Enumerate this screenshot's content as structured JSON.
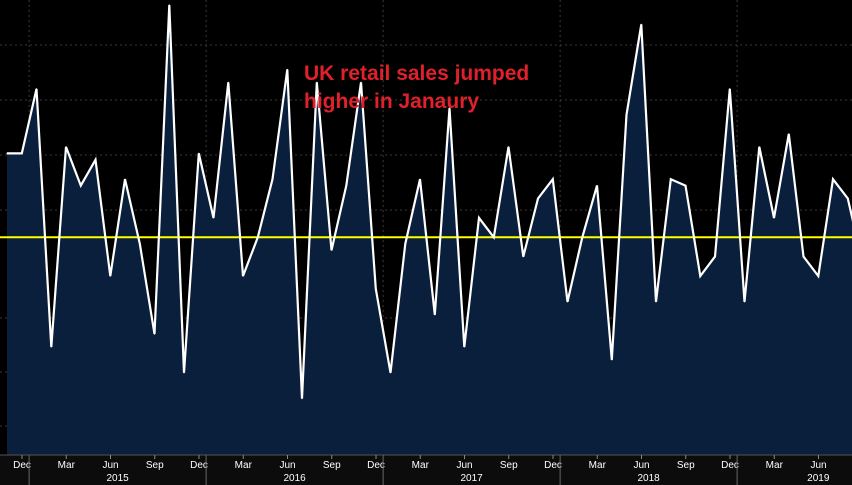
{
  "chart_data": {
    "type": "area",
    "title": "",
    "xlabel": "",
    "ylabel": "",
    "annotation_lines": [
      "UK retail sales jumped",
      "higher in Janaury"
    ],
    "months_x_labels": [
      "Dec",
      "Mar",
      "Jun",
      "Sep",
      "Dec",
      "Mar",
      "Jun",
      "Sep",
      "Dec",
      "Mar",
      "Jun",
      "Sep",
      "Dec",
      "Mar",
      "Jun",
      "Sep",
      "Dec",
      "Mar",
      "Jun"
    ],
    "year_labels": [
      "2015",
      "2016",
      "2017",
      "2018",
      "2019"
    ],
    "grid": true,
    "reference_line": {
      "value": 0,
      "color": "#ffff00"
    },
    "ylim": [
      -2.6,
      3.6
    ],
    "series": [
      {
        "values": [
          1.3,
          1.3,
          2.3,
          -1.7,
          1.4,
          0.8,
          1.2,
          -0.6,
          0.9,
          -0.1,
          -1.5,
          3.6,
          -2.1,
          1.3,
          0.3,
          2.4,
          -0.6,
          0.0,
          0.9,
          2.6,
          -2.5,
          2.4,
          -0.2,
          0.8,
          2.4,
          -0.8,
          -2.1,
          -0.1,
          0.9,
          -1.2,
          2.0,
          -1.7,
          0.3,
          0.0,
          1.4,
          -0.3,
          0.6,
          0.9,
          -1.0,
          0.0,
          0.8,
          -1.9,
          1.9,
          3.3,
          -1.0,
          0.9,
          0.8,
          -0.6,
          -0.3,
          2.3,
          -1.0,
          1.4,
          0.3,
          1.6,
          -0.3,
          -0.6,
          0.9,
          0.6,
          -0.4
        ],
        "color": "#ffffff",
        "fill": "#0a1f3c"
      }
    ],
    "colors": {
      "background": "#000000",
      "grid": "#3a3a3a",
      "axis_text": "#ffffff",
      "axis_band": "#0c0c0c"
    }
  }
}
